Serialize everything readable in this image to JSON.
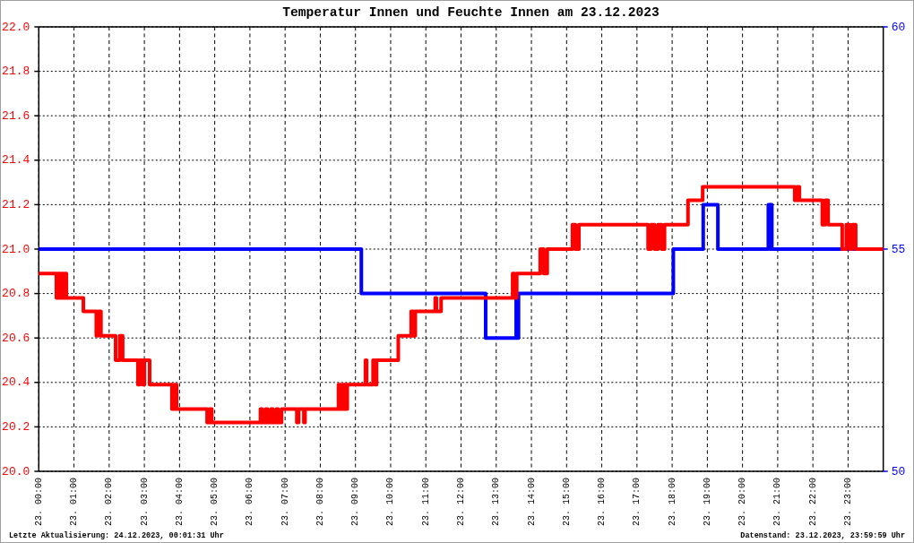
{
  "chart_data": {
    "type": "step",
    "title": "Temperatur Innen und Feuchte Innen am 23.12.2023",
    "xlim": [
      "2023-12-23T00:00",
      "2023-12-24T00:00"
    ],
    "xticks": [
      {
        "value": "2023-12-23T00:00",
        "label": "23. 00:00"
      },
      {
        "value": "2023-12-23T01:00",
        "label": "23. 01:00"
      },
      {
        "value": "2023-12-23T02:00",
        "label": "23. 02:00"
      },
      {
        "value": "2023-12-23T03:00",
        "label": "23. 03:00"
      },
      {
        "value": "2023-12-23T04:00",
        "label": "23. 04:00"
      },
      {
        "value": "2023-12-23T05:00",
        "label": "23. 05:00"
      },
      {
        "value": "2023-12-23T06:00",
        "label": "23. 06:00"
      },
      {
        "value": "2023-12-23T07:00",
        "label": "23. 07:00"
      },
      {
        "value": "2023-12-23T08:00",
        "label": "23. 08:00"
      },
      {
        "value": "2023-12-23T09:00",
        "label": "23. 09:00"
      },
      {
        "value": "2023-12-23T10:00",
        "label": "23. 10:00"
      },
      {
        "value": "2023-12-23T11:00",
        "label": "23. 11:00"
      },
      {
        "value": "2023-12-23T12:00",
        "label": "23. 12:00"
      },
      {
        "value": "2023-12-23T13:00",
        "label": "23. 13:00"
      },
      {
        "value": "2023-12-23T14:00",
        "label": "23. 14:00"
      },
      {
        "value": "2023-12-23T15:00",
        "label": "23. 15:00"
      },
      {
        "value": "2023-12-23T16:00",
        "label": "23. 16:00"
      },
      {
        "value": "2023-12-23T17:00",
        "label": "23. 17:00"
      },
      {
        "value": "2023-12-23T18:00",
        "label": "23. 18:00"
      },
      {
        "value": "2023-12-23T19:00",
        "label": "23. 19:00"
      },
      {
        "value": "2023-12-23T20:00",
        "label": "23. 20:00"
      },
      {
        "value": "2023-12-23T21:00",
        "label": "23. 21:00"
      },
      {
        "value": "2023-12-23T22:00",
        "label": "23. 22:00"
      },
      {
        "value": "2023-12-23T23:00",
        "label": "23. 23:00"
      }
    ],
    "ylim": [
      20,
      22
    ],
    "yticks": [
      {
        "value": 20,
        "label": "20.0"
      },
      20.2,
      20.4,
      20.6,
      20.8,
      {
        "value": 21,
        "label": "21.0"
      },
      21.2,
      21.4,
      21.6,
      21.8,
      {
        "value": 22,
        "label": "22.0"
      }
    ],
    "y2lim": [
      50,
      60
    ],
    "y2ticks": [
      50,
      55,
      60
    ],
    "grid": true,
    "line_style": "solid",
    "annotations": [
      "Letzte Aktualisierung: 24.12.2023, 00:01:31 Uhr",
      "Datenstand: 23.12.2023, 23:59:59 Uhr"
    ],
    "series": [
      {
        "color": "#0000ff",
        "axis": "y2",
        "x": [
          "2023-12-23T00:00",
          "2023-12-23T09:10",
          "2023-12-23T12:42",
          "2023-12-23T13:34",
          "2023-12-23T13:36",
          "2023-12-23T13:38",
          "2023-12-23T18:02",
          "2023-12-23T18:53",
          "2023-12-23T19:18",
          "2023-12-23T20:44",
          "2023-12-23T20:47",
          "2023-12-23T20:48",
          "2023-12-23T20:50",
          "2023-12-24T00:00"
        ],
        "values": [
          55,
          54,
          53,
          54,
          53,
          54,
          55,
          56,
          55,
          56,
          55,
          56,
          55,
          55
        ]
      },
      {
        "color": "#ff0000",
        "x": [
          "2023-12-23T00:00",
          "2023-12-23T00:30",
          "2023-12-23T00:33",
          "2023-12-23T00:36",
          "2023-12-23T00:39",
          "2023-12-23T00:42",
          "2023-12-23T00:45",
          "2023-12-23T00:47",
          "2023-12-23T01:16",
          "2023-12-23T01:38",
          "2023-12-23T01:41",
          "2023-12-23T01:46",
          "2023-12-23T02:11",
          "2023-12-23T02:18",
          "2023-12-23T02:23",
          "2023-12-23T02:49",
          "2023-12-23T02:52",
          "2023-12-23T02:57",
          "2023-12-23T03:00",
          "2023-12-23T03:09",
          "2023-12-23T03:47",
          "2023-12-23T03:51",
          "2023-12-23T03:55",
          "2023-12-23T04:47",
          "2023-12-23T04:51",
          "2023-12-23T04:55",
          "2023-12-23T06:18",
          "2023-12-23T06:21",
          "2023-12-23T06:27",
          "2023-12-23T06:30",
          "2023-12-23T06:36",
          "2023-12-23T06:39",
          "2023-12-23T06:45",
          "2023-12-23T06:48",
          "2023-12-23T06:54",
          "2023-12-23T07:20",
          "2023-12-23T07:23",
          "2023-12-23T07:32",
          "2023-12-23T07:34",
          "2023-12-23T08:31",
          "2023-12-23T08:35",
          "2023-12-23T08:39",
          "2023-12-23T08:43",
          "2023-12-23T08:46",
          "2023-12-23T09:17",
          "2023-12-23T09:19",
          "2023-12-23T09:30",
          "2023-12-23T09:33",
          "2023-12-23T09:36",
          "2023-12-23T10:13",
          "2023-12-23T10:35",
          "2023-12-23T10:39",
          "2023-12-23T10:42",
          "2023-12-23T11:16",
          "2023-12-23T11:18",
          "2023-12-23T11:26",
          "2023-12-23T13:28",
          "2023-12-23T13:31",
          "2023-12-23T13:35",
          "2023-12-23T14:15",
          "2023-12-23T14:21",
          "2023-12-23T14:27",
          "2023-12-23T15:10",
          "2023-12-23T15:15",
          "2023-12-23T15:21",
          "2023-12-23T17:19",
          "2023-12-23T17:24",
          "2023-12-23T17:30",
          "2023-12-23T17:36",
          "2023-12-23T17:42",
          "2023-12-23T17:47",
          "2023-12-23T18:27",
          "2023-12-23T18:52",
          "2023-12-23T21:29",
          "2023-12-23T21:33",
          "2023-12-23T21:37",
          "2023-12-23T22:16",
          "2023-12-23T22:21",
          "2023-12-23T22:26",
          "2023-12-23T22:50",
          "2023-12-23T22:57",
          "2023-12-23T23:03",
          "2023-12-23T23:07",
          "2023-12-23T23:13",
          "2023-12-24T00:00"
        ],
        "values": [
          20.89,
          20.78,
          20.89,
          20.78,
          20.89,
          20.78,
          20.89,
          20.78,
          20.72,
          20.61,
          20.72,
          20.61,
          20.5,
          20.61,
          20.5,
          20.39,
          20.5,
          20.39,
          20.5,
          20.39,
          20.28,
          20.39,
          20.28,
          20.22,
          20.28,
          20.22,
          20.28,
          20.22,
          20.28,
          20.22,
          20.28,
          20.22,
          20.28,
          20.22,
          20.28,
          20.22,
          20.28,
          20.22,
          20.28,
          20.39,
          20.28,
          20.39,
          20.28,
          20.39,
          20.5,
          20.39,
          20.5,
          20.39,
          20.5,
          20.61,
          20.72,
          20.61,
          20.72,
          20.78,
          20.72,
          20.78,
          20.89,
          20.78,
          20.89,
          21.0,
          20.89,
          21.0,
          21.11,
          21.0,
          21.11,
          21.0,
          21.11,
          21.0,
          21.11,
          21.0,
          21.11,
          21.22,
          21.28,
          21.22,
          21.28,
          21.22,
          21.11,
          21.22,
          21.11,
          21.0,
          21.11,
          21.0,
          21.11,
          21.0,
          21.0
        ]
      }
    ]
  }
}
